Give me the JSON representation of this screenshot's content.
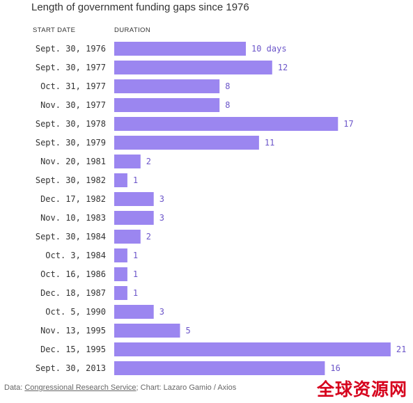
{
  "chart_data": {
    "type": "bar",
    "orientation": "horizontal",
    "title": "Length of government funding gaps since 1976",
    "category_header": "START DATE",
    "value_header": "DURATION",
    "categories": [
      "Sept. 30, 1976",
      "Sept. 30, 1977",
      "Oct. 31, 1977",
      "Nov. 30, 1977",
      "Sept. 30, 1978",
      "Sept. 30, 1979",
      "Nov. 20, 1981",
      "Sept. 30, 1982",
      "Dec. 17, 1982",
      "Nov. 10, 1983",
      "Sept. 30, 1984",
      "Oct. 3, 1984",
      "Oct. 16, 1986",
      "Dec. 18, 1987",
      "Oct. 5, 1990",
      "Nov. 13, 1995",
      "Dec. 15, 1995",
      "Sept. 30, 2013"
    ],
    "values": [
      10,
      12,
      8,
      8,
      17,
      11,
      2,
      1,
      3,
      3,
      2,
      1,
      1,
      1,
      3,
      5,
      21,
      16
    ],
    "value_labels": [
      "10 days",
      "12",
      "8",
      "8",
      "17",
      "11",
      "2",
      "1",
      "3",
      "3",
      "2",
      "1",
      "1",
      "1",
      "3",
      "5",
      "21",
      "16"
    ],
    "grid": false,
    "legend": "none",
    "bar_color": "#9b86f0",
    "label_color": "#6b55c9",
    "text_color": "#333333"
  },
  "source": {
    "data_prefix": "Data: ",
    "data_link": "Congressional Research Service",
    "chart_credit": "; Chart: Lazaro Gamio / Axios"
  },
  "watermark": "全球资源网"
}
